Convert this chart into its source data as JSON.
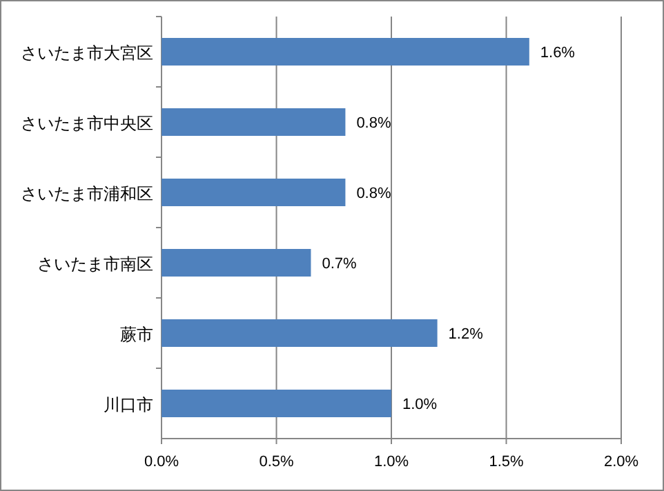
{
  "chart_data": {
    "type": "bar",
    "orientation": "horizontal",
    "categories": [
      "さいたま市大宮区",
      "さいたま市中央区",
      "さいたま市浦和区",
      "さいたま市南区",
      "蕨市",
      "川口市"
    ],
    "values": [
      1.6,
      0.8,
      0.8,
      0.65,
      1.2,
      1.0
    ],
    "value_labels": [
      "1.6%",
      "0.8%",
      "0.8%",
      "0.7%",
      "1.2%",
      "1.0%"
    ],
    "color": "#4f81bd",
    "xlim": [
      0,
      2
    ],
    "xticks": [
      {
        "value": 0,
        "label": "0.0%"
      },
      {
        "value": 0.5,
        "label": "0.5%"
      },
      {
        "value": 1,
        "label": "1.0%"
      },
      {
        "value": 1.5,
        "label": "1.5%"
      },
      {
        "value": 2,
        "label": "2.0%"
      }
    ],
    "grid": "x"
  }
}
